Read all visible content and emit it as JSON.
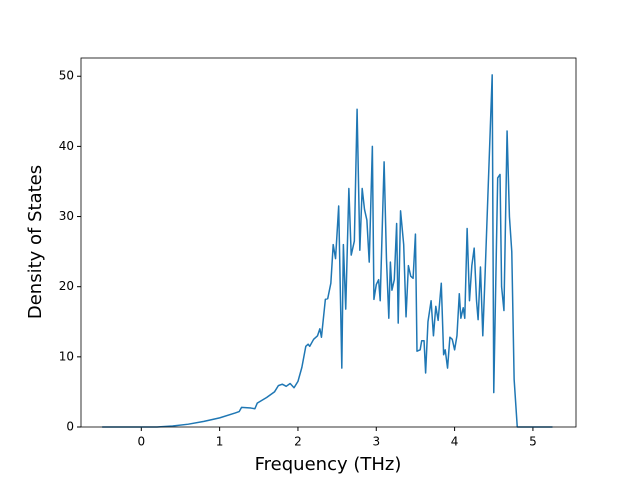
{
  "chart_data": {
    "type": "line",
    "xlabel": "Frequency (THz)",
    "ylabel": "Density of States",
    "x": [
      -0.5,
      0,
      0.2,
      0.4,
      0.6,
      0.8,
      1.0,
      1.2,
      1.25,
      1.28,
      1.4,
      1.45,
      1.48,
      1.6,
      1.7,
      1.75,
      1.8,
      1.85,
      1.9,
      1.95,
      2.0,
      2.05,
      2.1,
      2.13,
      2.15,
      2.2,
      2.25,
      2.28,
      2.3,
      2.35,
      2.38,
      2.42,
      2.45,
      2.48,
      2.52,
      2.56,
      2.58,
      2.61,
      2.65,
      2.68,
      2.72,
      2.755,
      2.79,
      2.82,
      2.85,
      2.88,
      2.91,
      2.95,
      2.97,
      3.0,
      3.03,
      3.05,
      3.1,
      3.13,
      3.16,
      3.18,
      3.2,
      3.23,
      3.26,
      3.28,
      3.31,
      3.35,
      3.38,
      3.41,
      3.44,
      3.47,
      3.5,
      3.52,
      3.56,
      3.58,
      3.61,
      3.63,
      3.66,
      3.7,
      3.73,
      3.76,
      3.79,
      3.83,
      3.86,
      3.88,
      3.91,
      3.94,
      3.97,
      4.0,
      4.03,
      4.06,
      4.08,
      4.11,
      4.13,
      4.16,
      4.19,
      4.22,
      4.25,
      4.28,
      4.3,
      4.33,
      4.36,
      4.39,
      4.48,
      4.5,
      4.55,
      4.58,
      4.6,
      4.63,
      4.67,
      4.7,
      4.73,
      4.76,
      4.8,
      5.25
    ],
    "series": [
      {
        "name": "DOS",
        "color": "#1f77b4",
        "values": [
          0,
          0,
          0,
          0.15,
          0.4,
          0.8,
          1.3,
          2.0,
          2.2,
          2.8,
          2.7,
          2.6,
          3.4,
          4.2,
          5.0,
          5.9,
          6.1,
          5.8,
          6.2,
          5.6,
          6.5,
          8.5,
          11.5,
          11.8,
          11.5,
          12.5,
          13.0,
          14.0,
          12.8,
          18.2,
          18.3,
          20.5,
          26.0,
          24.0,
          31.5,
          8.4,
          26.0,
          16.8,
          34.0,
          24.5,
          26.5,
          45.3,
          25.2,
          34.0,
          31.0,
          29.5,
          23.5,
          40.0,
          18.2,
          20.3,
          21.0,
          18.0,
          37.8,
          24.0,
          15.5,
          23.5,
          19.5,
          21.0,
          29.0,
          14.8,
          30.8,
          26.0,
          15.7,
          23.0,
          21.5,
          21.2,
          27.5,
          10.8,
          11.0,
          12.3,
          12.3,
          7.7,
          15.0,
          18.0,
          13.0,
          17.2,
          15.2,
          20.5,
          10.3,
          11.0,
          8.4,
          12.8,
          12.5,
          11.0,
          13.0,
          19.0,
          15.5,
          17.0,
          15.5,
          28.3,
          18.0,
          23.0,
          25.5,
          18.0,
          15.3,
          22.8,
          13.0,
          22.0,
          50.2,
          4.9,
          35.5,
          36.0,
          20.0,
          16.6,
          42.2,
          30.0,
          25.0,
          6.8,
          0,
          0
        ]
      }
    ],
    "xlim": [
      -0.77,
      5.55
    ],
    "ylim": [
      0,
      52.6
    ],
    "xticks": [
      0,
      1,
      2,
      3,
      4,
      5
    ],
    "yticks": [
      0,
      10,
      20,
      30,
      40,
      50
    ]
  }
}
